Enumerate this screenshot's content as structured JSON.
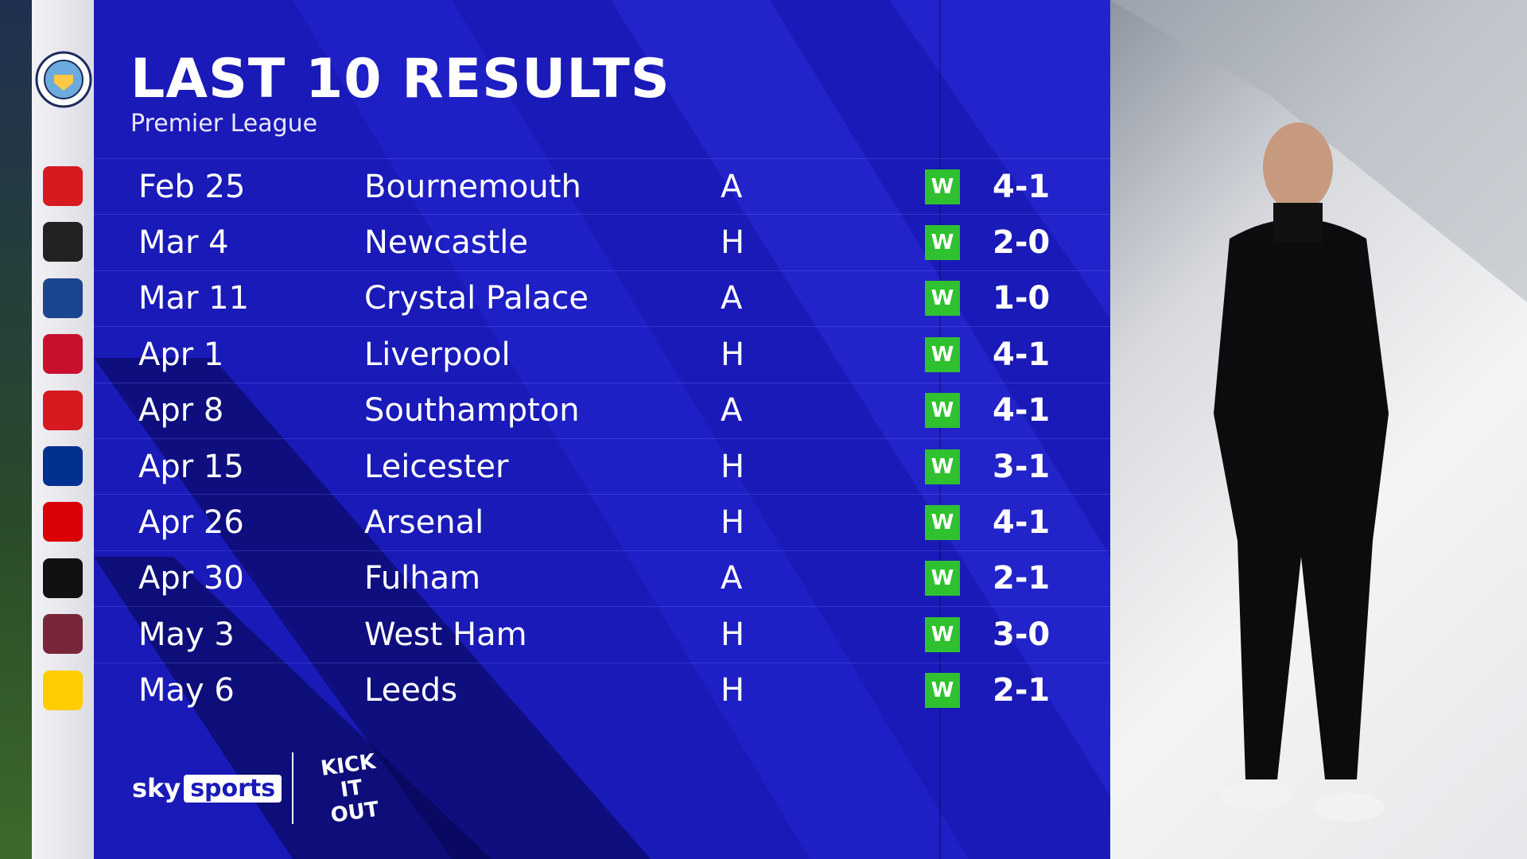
{
  "header": {
    "title": "LAST 10 RESULTS",
    "subtitle": "Premier League",
    "team_crest": "manchester-city-crest"
  },
  "results": [
    {
      "date": "Feb 25",
      "opponent": "Bournemouth",
      "venue": "A",
      "result": "W",
      "score": "4-1",
      "crest": "bournemouth-crest",
      "crest_color": "#d71920"
    },
    {
      "date": "Mar 4",
      "opponent": "Newcastle",
      "venue": "H",
      "result": "W",
      "score": "2-0",
      "crest": "newcastle-crest",
      "crest_color": "#222222"
    },
    {
      "date": "Mar 11",
      "opponent": "Crystal Palace",
      "venue": "A",
      "result": "W",
      "score": "1-0",
      "crest": "crystal-palace-crest",
      "crest_color": "#1b458f"
    },
    {
      "date": "Apr 1",
      "opponent": "Liverpool",
      "venue": "H",
      "result": "W",
      "score": "4-1",
      "crest": "liverpool-crest",
      "crest_color": "#c8102e"
    },
    {
      "date": "Apr 8",
      "opponent": "Southampton",
      "venue": "A",
      "result": "W",
      "score": "4-1",
      "crest": "southampton-crest",
      "crest_color": "#d71920"
    },
    {
      "date": "Apr 15",
      "opponent": "Leicester",
      "venue": "H",
      "result": "W",
      "score": "3-1",
      "crest": "leicester-crest",
      "crest_color": "#003090"
    },
    {
      "date": "Apr 26",
      "opponent": "Arsenal",
      "venue": "H",
      "result": "W",
      "score": "4-1",
      "crest": "arsenal-crest",
      "crest_color": "#db0007"
    },
    {
      "date": "Apr 30",
      "opponent": "Fulham",
      "venue": "A",
      "result": "W",
      "score": "2-1",
      "crest": "fulham-crest",
      "crest_color": "#111111"
    },
    {
      "date": "May 3",
      "opponent": "West Ham",
      "venue": "H",
      "result": "W",
      "score": "3-0",
      "crest": "west-ham-crest",
      "crest_color": "#7a263a"
    },
    {
      "date": "May 6",
      "opponent": "Leeds",
      "venue": "H",
      "result": "W",
      "score": "2-1",
      "crest": "leeds-crest",
      "crest_color": "#ffcd00"
    }
  ],
  "colors": {
    "panel": "#1a1ab8",
    "win": "#2fc12f"
  },
  "footer": {
    "sky": "sky",
    "sports": "sports",
    "kick_it_out": "KICK IT OUT"
  }
}
